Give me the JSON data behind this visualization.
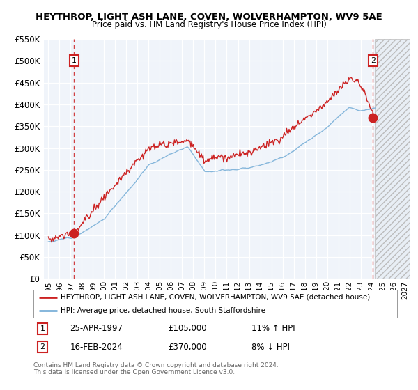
{
  "title": "HEYTHROP, LIGHT ASH LANE, COVEN, WOLVERHAMPTON, WV9 5AE",
  "subtitle": "Price paid vs. HM Land Registry's House Price Index (HPI)",
  "legend_line1": "HEYTHROP, LIGHT ASH LANE, COVEN, WOLVERHAMPTON, WV9 5AE (detached house)",
  "legend_line2": "HPI: Average price, detached house, South Staffordshire",
  "point1_date": "25-APR-1997",
  "point1_price": "£105,000",
  "point1_hpi": "11% ↑ HPI",
  "point1_year": 1997.3,
  "point1_value": 105000,
  "point2_date": "16-FEB-2024",
  "point2_price": "£370,000",
  "point2_hpi": "8% ↓ HPI",
  "point2_year": 2024.12,
  "point2_value": 370000,
  "footer": "Contains HM Land Registry data © Crown copyright and database right 2024.\nThis data is licensed under the Open Government Licence v3.0.",
  "plot_bg_color": "#f0f4fa",
  "fig_bg_color": "#ffffff",
  "grid_color": "#ffffff",
  "red_color": "#cc2222",
  "blue_color": "#7ab0d8",
  "ylim": [
    0,
    550000
  ],
  "xlim_start": 1994.6,
  "xlim_end": 2027.4,
  "hatch_start": 2024.3,
  "seed": 12
}
